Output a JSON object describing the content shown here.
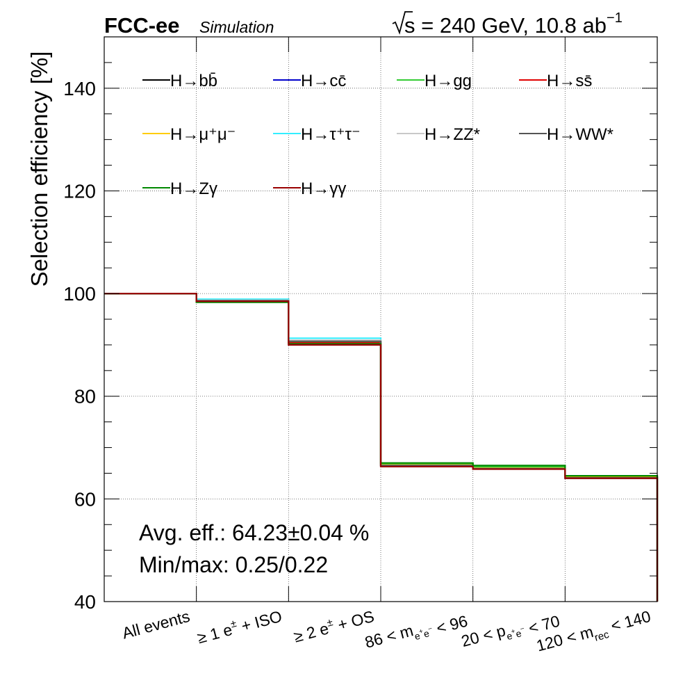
{
  "header": {
    "experiment": "FCC-ee",
    "status": "Simulation",
    "energy_prefix": "s = 240 GeV, 10.8 ab",
    "energy_exp": "−1"
  },
  "annotations": {
    "avg_eff": "Avg. eff.: 64.23±0.04 %",
    "minmax": "Min/max: 0.25/0.22"
  },
  "chart_data": {
    "type": "line",
    "step": true,
    "ylabel": "Selection efficiency [%]",
    "ylim": [
      40,
      150
    ],
    "yticks": [
      40,
      60,
      80,
      100,
      120,
      140
    ],
    "grid": true,
    "legend_position": "top",
    "categories": [
      "All events",
      "≥1 e± + ISO",
      "≥2 e± + OS",
      "86 < m_e+e- < 96",
      "20 < p_e+e- < 70",
      "120 < m_rec < 140"
    ],
    "series": [
      {
        "name": "H→bb̄",
        "color": "#000000",
        "values": [
          100,
          98.6,
          90.6,
          66.6,
          66.0,
          64.2
        ]
      },
      {
        "name": "H→cc̄",
        "color": "#0000cc",
        "values": [
          100,
          98.6,
          90.5,
          66.6,
          66.0,
          64.2
        ]
      },
      {
        "name": "H→gg",
        "color": "#33cc33",
        "values": [
          100,
          98.4,
          90.4,
          66.9,
          66.3,
          64.4
        ]
      },
      {
        "name": "H→ss̄",
        "color": "#e00000",
        "values": [
          100,
          98.5,
          90.5,
          66.5,
          66.0,
          64.2
        ]
      },
      {
        "name": "H→μ⁺μ⁻",
        "color": "#ffcc00",
        "values": [
          100,
          98.7,
          90.7,
          66.6,
          66.0,
          64.2
        ]
      },
      {
        "name": "H→τ⁺τ⁻",
        "color": "#33eeff",
        "values": [
          100,
          98.9,
          91.3,
          66.5,
          65.9,
          64.0
        ]
      },
      {
        "name": "H→ZZ*",
        "color": "#c8c8c8",
        "values": [
          100,
          98.7,
          90.9,
          66.5,
          65.9,
          64.1
        ]
      },
      {
        "name": "H→WW*",
        "color": "#555555",
        "values": [
          100,
          98.6,
          90.7,
          66.5,
          65.9,
          64.1
        ]
      },
      {
        "name": "H→Zγ",
        "color": "#008800",
        "values": [
          100,
          98.3,
          90.2,
          67.0,
          66.5,
          64.5
        ]
      },
      {
        "name": "H→γγ",
        "color": "#990000",
        "values": [
          100,
          98.5,
          90.0,
          66.3,
          65.8,
          64.0
        ]
      }
    ]
  }
}
